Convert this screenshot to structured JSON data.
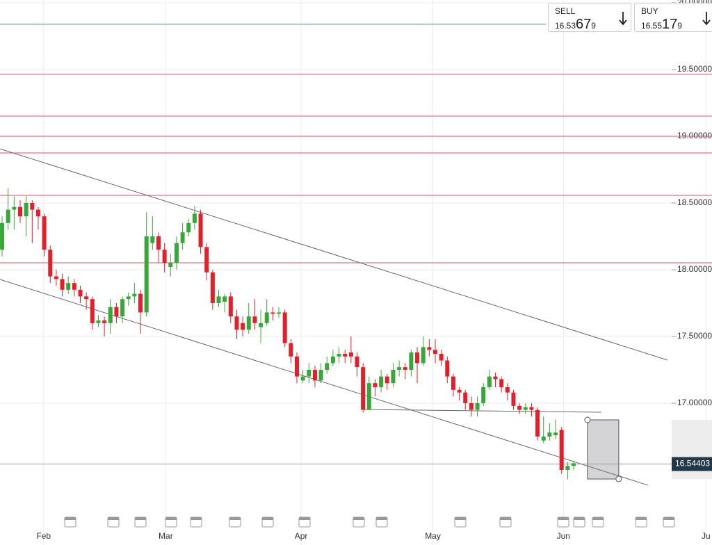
{
  "chart_data": {
    "type": "candlestick",
    "categories": [
      null,
      null,
      null,
      null,
      null,
      null,
      null,
      null,
      null,
      null,
      null,
      null,
      null,
      null,
      null,
      null,
      null,
      null,
      null,
      null,
      null,
      null,
      null,
      null,
      null,
      null,
      null,
      null,
      null,
      null,
      null,
      null,
      null,
      null,
      null,
      null,
      null,
      null,
      null,
      null,
      null,
      null,
      null,
      null,
      null,
      null,
      null,
      null,
      null,
      null,
      null,
      null,
      null,
      null,
      null,
      null,
      null,
      null,
      null,
      null,
      null,
      null,
      null,
      null,
      null,
      null,
      null,
      null,
      null,
      null,
      null,
      null,
      null,
      null,
      null,
      null,
      null,
      null,
      null,
      null,
      null,
      null,
      null,
      null,
      null,
      null,
      null,
      null,
      null,
      null,
      null,
      null,
      null,
      null,
      null,
      null
    ],
    "open": [
      18.15,
      18.35,
      18.45,
      18.47,
      18.4,
      18.5,
      18.45,
      18.4,
      18.15,
      17.95,
      17.93,
      17.85,
      17.9,
      17.85,
      17.8,
      17.78,
      17.6,
      17.62,
      17.6,
      17.72,
      17.65,
      17.78,
      17.8,
      17.82,
      17.68,
      18.2,
      18.25,
      18.15,
      18.02,
      18.05,
      18.2,
      18.28,
      18.35,
      18.42,
      18.17,
      17.98,
      17.75,
      17.76,
      17.8,
      17.65,
      17.6,
      17.55,
      17.65,
      17.57,
      17.6,
      17.68,
      17.67,
      17.68,
      17.45,
      17.35,
      17.17,
      17.2,
      17.25,
      17.17,
      17.25,
      17.3,
      17.35,
      17.37,
      17.38,
      17.35,
      17.27,
      16.95,
      17.15,
      17.12,
      17.2,
      17.15,
      17.25,
      17.27,
      17.25,
      17.38,
      17.3,
      17.42,
      17.4,
      17.37,
      17.32,
      17.2,
      17.1,
      17.08,
      17.0,
      16.95,
      17.0,
      17.12,
      17.2,
      17.18,
      17.12,
      17.08,
      16.98,
      16.95,
      16.97,
      16.95,
      16.72,
      16.75,
      16.76,
      16.8,
      16.5,
      16.53
    ],
    "high": [
      18.4,
      18.61,
      18.55,
      18.52,
      18.55,
      18.52,
      18.47,
      18.42,
      18.18,
      18.0,
      17.97,
      17.95,
      17.93,
      17.88,
      17.83,
      17.8,
      17.66,
      17.65,
      17.78,
      17.75,
      17.8,
      17.83,
      17.9,
      17.85,
      18.43,
      18.4,
      18.28,
      18.2,
      18.12,
      18.25,
      18.35,
      18.38,
      18.48,
      18.45,
      18.2,
      18.0,
      17.85,
      17.82,
      17.83,
      17.7,
      17.65,
      17.75,
      17.78,
      17.7,
      17.78,
      17.72,
      17.72,
      17.7,
      17.48,
      17.38,
      17.25,
      17.3,
      17.28,
      17.3,
      17.35,
      17.4,
      17.42,
      17.4,
      17.5,
      17.38,
      17.3,
      17.2,
      17.18,
      17.25,
      17.22,
      17.3,
      17.32,
      17.3,
      17.4,
      17.42,
      17.5,
      17.48,
      17.48,
      17.4,
      17.35,
      17.22,
      17.12,
      17.1,
      17.05,
      17.05,
      17.15,
      17.25,
      17.23,
      17.2,
      17.15,
      17.1,
      17.0,
      17.0,
      17.0,
      16.97,
      16.9,
      16.85,
      16.88,
      16.82,
      16.56,
      16.57
    ],
    "low": [
      18.1,
      18.3,
      18.3,
      18.35,
      18.25,
      18.2,
      18.3,
      18.1,
      17.9,
      17.88,
      17.8,
      17.82,
      17.8,
      17.75,
      17.7,
      17.55,
      17.57,
      17.5,
      17.52,
      17.6,
      17.6,
      17.73,
      17.75,
      17.52,
      17.65,
      18.15,
      18.05,
      17.98,
      17.95,
      18.0,
      18.15,
      18.25,
      18.3,
      18.12,
      17.92,
      17.7,
      17.72,
      17.68,
      17.6,
      17.48,
      17.5,
      17.52,
      17.55,
      17.45,
      17.58,
      17.62,
      17.64,
      17.42,
      17.3,
      17.15,
      17.15,
      17.15,
      17.12,
      17.15,
      17.22,
      17.28,
      17.3,
      17.3,
      17.3,
      17.2,
      16.93,
      16.95,
      17.05,
      17.08,
      17.1,
      17.12,
      17.2,
      17.18,
      17.2,
      17.15,
      17.28,
      17.35,
      17.3,
      17.28,
      17.15,
      17.05,
      17.02,
      16.95,
      16.9,
      16.9,
      16.98,
      17.1,
      17.12,
      17.08,
      17.02,
      16.95,
      16.92,
      16.92,
      16.9,
      16.72,
      16.7,
      16.72,
      16.73,
      16.47,
      16.43,
      16.5
    ],
    "close": [
      18.35,
      18.45,
      18.47,
      18.4,
      18.5,
      18.45,
      18.4,
      18.15,
      17.95,
      17.93,
      17.85,
      17.9,
      17.85,
      17.8,
      17.78,
      17.6,
      17.62,
      17.6,
      17.72,
      17.65,
      17.78,
      17.8,
      17.82,
      17.68,
      18.25,
      18.25,
      18.15,
      18.05,
      18.05,
      18.2,
      18.28,
      18.35,
      18.42,
      18.17,
      17.98,
      17.75,
      17.8,
      17.8,
      17.65,
      17.55,
      17.55,
      17.65,
      17.6,
      17.6,
      17.68,
      17.67,
      17.68,
      17.45,
      17.35,
      17.2,
      17.2,
      17.25,
      17.17,
      17.25,
      17.3,
      17.35,
      17.37,
      17.35,
      17.35,
      17.27,
      16.95,
      17.15,
      17.12,
      17.2,
      17.15,
      17.25,
      17.27,
      17.25,
      17.38,
      17.3,
      17.42,
      17.4,
      17.37,
      17.32,
      17.2,
      17.1,
      17.08,
      17.0,
      16.95,
      17.0,
      17.12,
      17.2,
      17.18,
      17.12,
      17.08,
      16.98,
      16.95,
      16.97,
      16.95,
      16.75,
      16.75,
      16.78,
      16.78,
      16.5,
      16.53,
      16.55
    ],
    "up_color": "#3aa63a",
    "down_color": "#e0202a",
    "xlim": [
      -0.35,
      118
    ],
    "xticks": [
      {
        "value": 6.9,
        "label": "Feb"
      },
      {
        "value": 27.2,
        "label": "Mar"
      },
      {
        "value": 49.7,
        "label": "Apr"
      },
      {
        "value": 71.6,
        "label": "May"
      },
      {
        "value": 93.3,
        "label": "Jun"
      },
      {
        "value": 117,
        "label": "Ju"
      }
    ],
    "ylim": [
      15.9375,
      20.0208
    ],
    "yticks": [
      {
        "value": 17,
        "label": "17.000000"
      },
      {
        "value": 17.5,
        "label": "17.500000"
      },
      {
        "value": 18,
        "label": "18.000000"
      },
      {
        "value": 18.5,
        "label": "18.500000"
      },
      {
        "value": 19,
        "label": "19.000000"
      },
      {
        "value": 19.5,
        "label": "19.500000"
      },
      {
        "value": 20,
        "label": "20.000000"
      }
    ],
    "grid": true,
    "levels": {
      "color": "#e05060",
      "values": [
        19.464,
        19.151,
        19.0,
        18.875,
        18.557,
        18.052
      ]
    },
    "blue_level": {
      "color": "#5b86b0",
      "value": 19.839
    },
    "current_price": {
      "value": 16.54403,
      "label": "16.54403"
    },
    "trend_lines": [
      {
        "x": [
          -0.35,
          110.6
        ],
        "y": [
          18.906,
          17.323
        ]
      },
      {
        "x": [
          -0.35,
          107.4
        ],
        "y": [
          17.927,
          16.385
        ]
      },
      {
        "x": [
          59.8,
          99.6
        ],
        "y": [
          16.953,
          16.932
        ]
      }
    ],
    "position_box": {
      "x": [
        97.3,
        102.5
      ],
      "y": [
        16.875,
        16.432
      ]
    }
  },
  "trade_buttons": [
    {
      "label": "SELL",
      "prefix": "16.53",
      "big": "67",
      "small": "9"
    },
    {
      "label": "BUY",
      "prefix": "16.55",
      "big": "17",
      "small": "9"
    }
  ]
}
